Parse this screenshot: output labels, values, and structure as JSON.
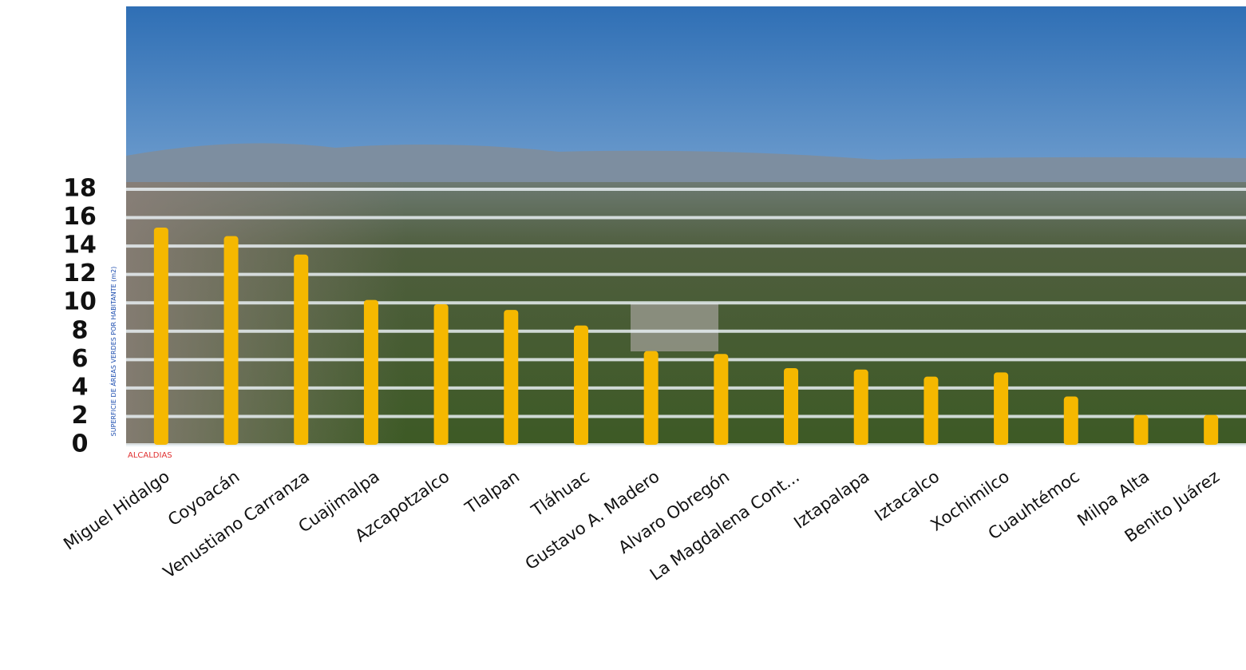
{
  "chart_data": {
    "type": "bar",
    "y_label": "SUPERFICIE DE ÁREAS VERDES POR HABITANTE (m2)",
    "x_label": "ALCALDIAS",
    "categories": [
      "Miguel Hidalgo",
      "Coyoacán",
      "Venustiano Carranza",
      "Cuajimalpa",
      "Azcapotzalco",
      "Tlalpan",
      "Tláhuac",
      "Gustavo A. Madero",
      "Alvaro Obregón",
      "La Magdalena Cont...",
      "Iztapalapa",
      "Iztacalco",
      "Xochimilco",
      "Cuauhtémoc",
      "Milpa Alta",
      "Benito Juárez"
    ],
    "values": [
      15.3,
      14.7,
      13.4,
      10.2,
      9.9,
      9.5,
      8.4,
      6.6,
      6.4,
      5.4,
      5.3,
      4.8,
      5.1,
      3.4,
      2.1,
      2.1
    ],
    "color": "#f5b800",
    "ylim": [
      0,
      18
    ],
    "yticks": [
      0,
      2,
      4,
      6,
      8,
      10,
      12,
      14,
      16,
      18
    ],
    "grid": true
  }
}
